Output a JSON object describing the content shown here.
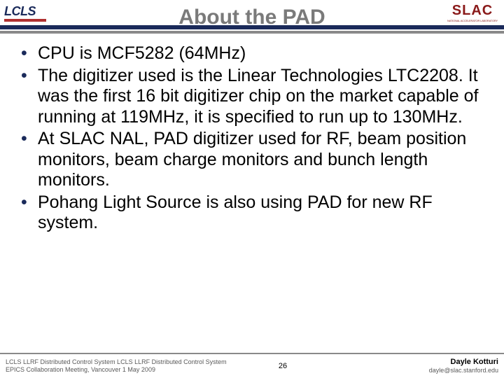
{
  "header": {
    "title": "About the PAD",
    "logo_left_text": "LCLS",
    "logo_right_text": "SLAC",
    "logo_right_subtitle": "NATIONAL ACCELERATOR LABORATORY"
  },
  "bullets": [
    "CPU is MCF5282 (64MHz)",
    "The digitizer used is the Linear Technologies LTC2208.  It was the first 16 bit digitizer chip on the market capable of running at 119MHz, it is specified to run up to 130MHz.",
    "At SLAC NAL, PAD digitizer used for RF, beam position monitors, beam charge monitors and bunch length monitors.",
    "Pohang Light Source is also using PAD for new RF system."
  ],
  "footer": {
    "left_line1": "LCLS LLRF Distributed Control System LCLS LLRF Distributed Control System",
    "left_line2": "EPICS Collaboration Meeting, Vancouver 1 May 2009",
    "page_number": "26",
    "author_name": "Dayle Kotturi",
    "author_email": "dayle@slac.stanford.edu"
  },
  "colors": {
    "title_color": "#7a7a7a",
    "bar_color": "#1a2a5a",
    "bullet_color": "#1a2a5a",
    "slac_color": "#8a1a1a",
    "lcls_underline": "#b03030"
  }
}
